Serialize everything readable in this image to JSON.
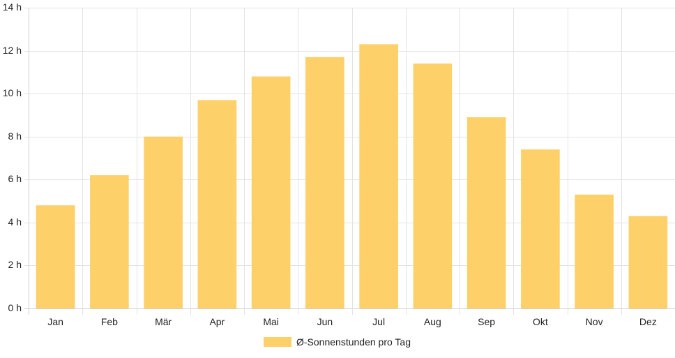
{
  "chart_data": {
    "type": "bar",
    "categories": [
      "Jan",
      "Feb",
      "Mär",
      "Apr",
      "Mai",
      "Jun",
      "Jul",
      "Aug",
      "Sep",
      "Okt",
      "Nov",
      "Dez"
    ],
    "series": [
      {
        "name": "Ø-Sonnenstunden pro Tag",
        "values": [
          4.8,
          6.2,
          8.0,
          9.7,
          10.8,
          11.7,
          12.3,
          11.4,
          8.9,
          7.4,
          5.3,
          4.3
        ]
      }
    ],
    "ylim": [
      0,
      14
    ],
    "y_ticks": [
      0,
      2,
      4,
      6,
      8,
      10,
      12,
      14
    ],
    "y_tick_suffix": " h",
    "grid": true,
    "legend_position": "bottom",
    "colors": {
      "bar": "#fdd069",
      "grid": "#e3e3e3",
      "axis": "#cfcfcf",
      "text": "#222222"
    }
  }
}
